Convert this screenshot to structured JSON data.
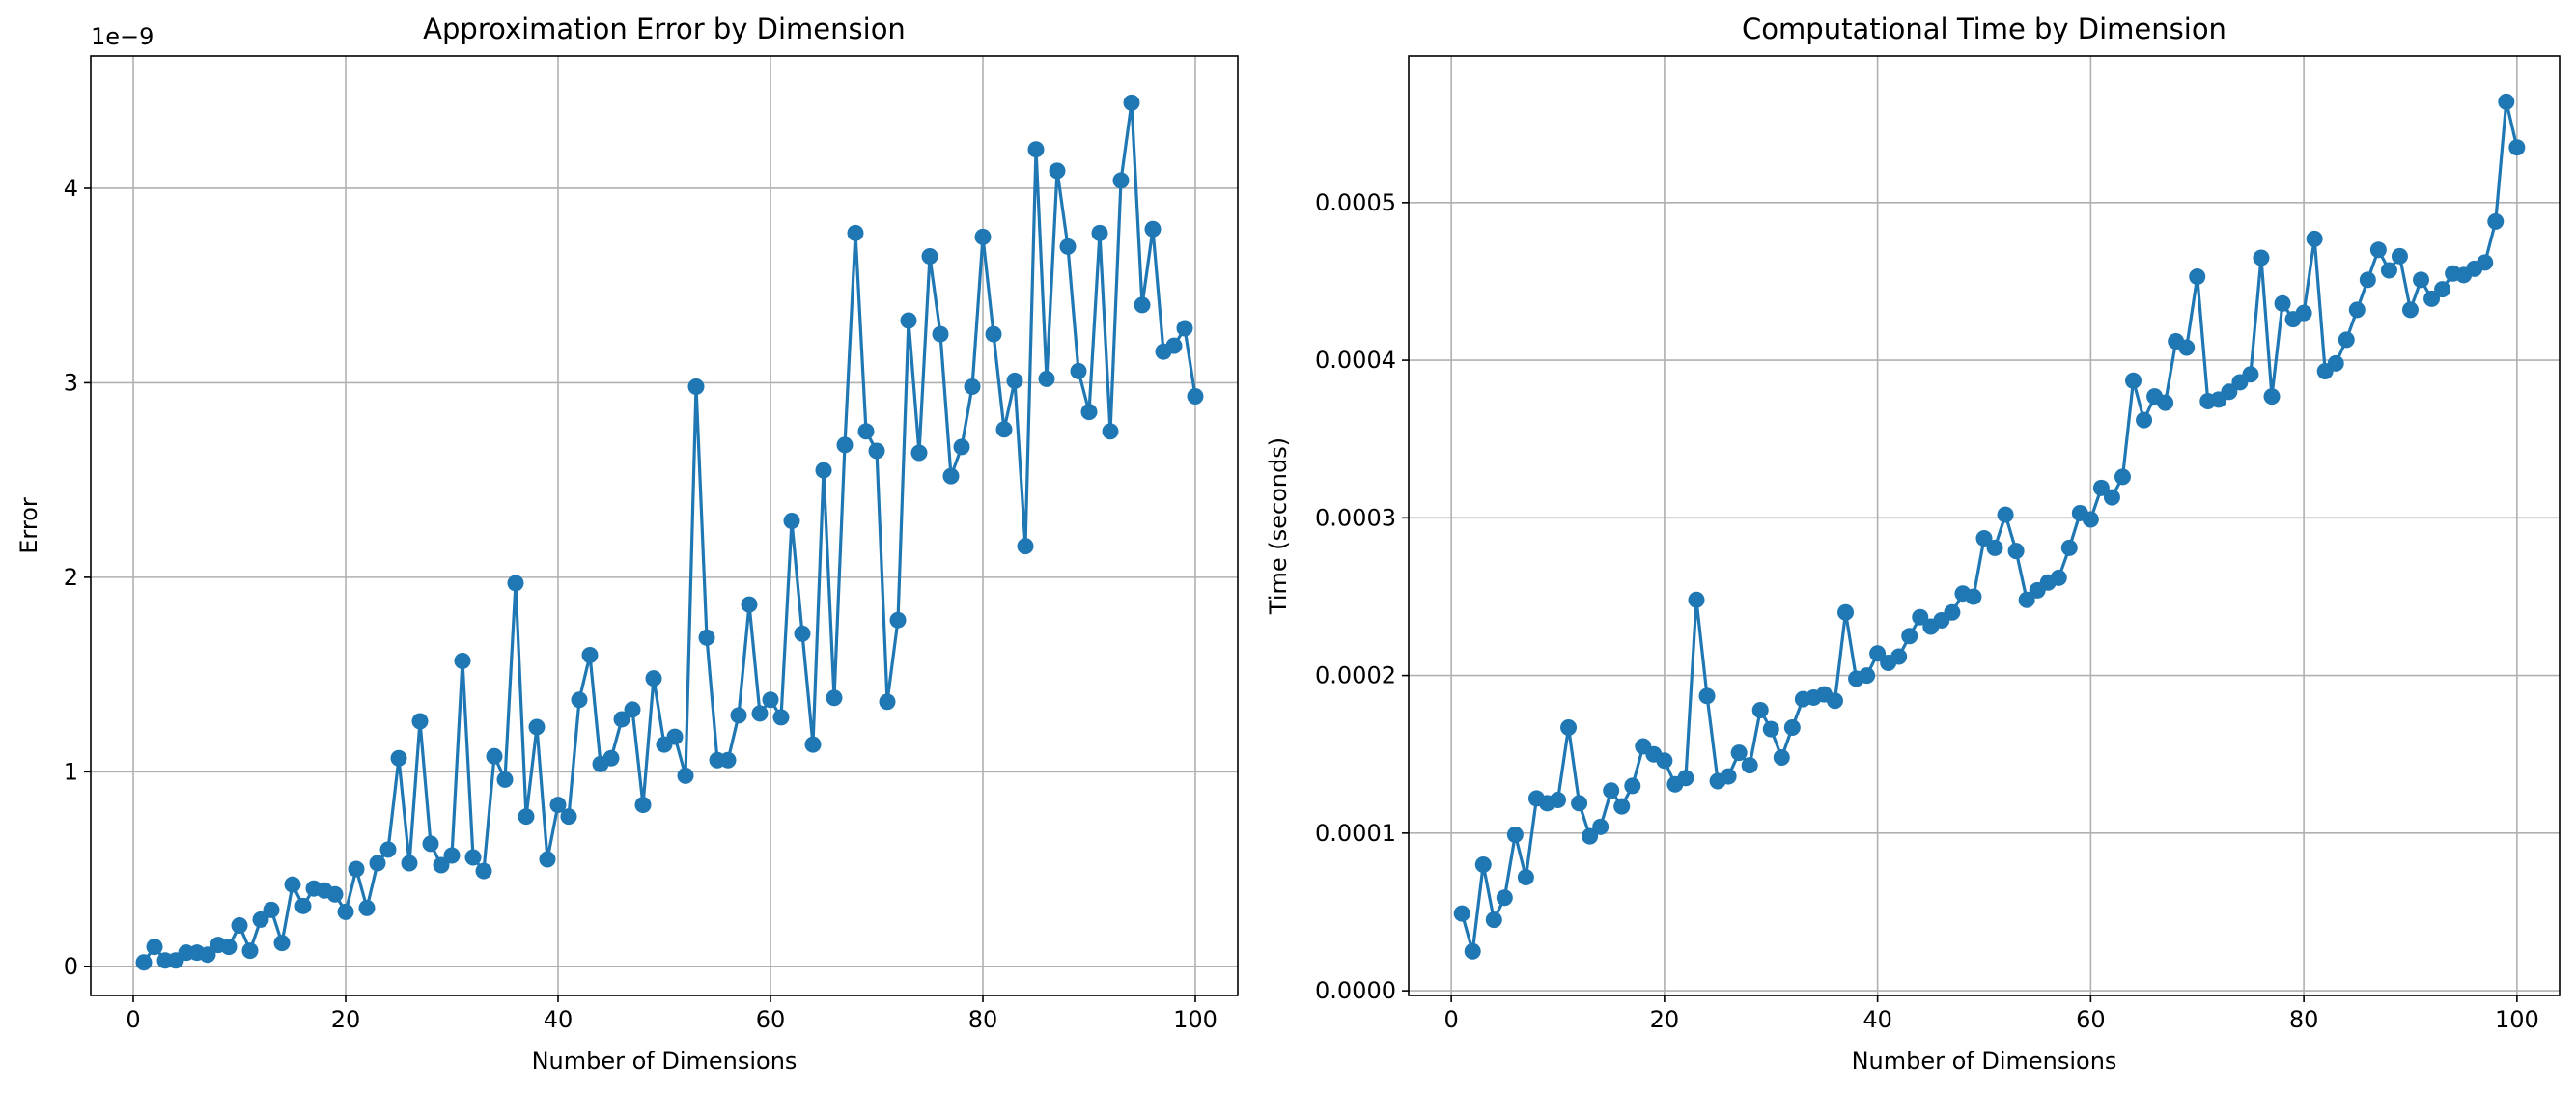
{
  "style": {
    "series_color": "#1f77b4",
    "grid_color": "#b0b0b0",
    "background": "#ffffff"
  },
  "chart_data": [
    {
      "type": "line",
      "title": "Approximation Error by Dimension",
      "xlabel": "Number of Dimensions",
      "ylabel": "Error",
      "y_offset_label": "1e−9",
      "grid": true,
      "markers": true,
      "xlim": [
        -4,
        104
      ],
      "ylim": [
        -0.15,
        4.68
      ],
      "x_ticks": [
        0,
        20,
        40,
        60,
        80,
        100
      ],
      "x_tick_labels": [
        "0",
        "20",
        "40",
        "60",
        "80",
        "100"
      ],
      "y_ticks": [
        0,
        1,
        2,
        3,
        4
      ],
      "y_tick_labels": [
        "0",
        "1",
        "2",
        "3",
        "4"
      ],
      "series": [
        {
          "x": [
            1,
            2,
            3,
            4,
            5,
            6,
            7,
            8,
            9,
            10,
            11,
            12,
            13,
            14,
            15,
            16,
            17,
            18,
            19,
            20,
            21,
            22,
            23,
            24,
            25,
            26,
            27,
            28,
            29,
            30,
            31,
            32,
            33,
            34,
            35,
            36,
            37,
            38,
            39,
            40,
            41,
            42,
            43,
            44,
            45,
            46,
            47,
            48,
            49,
            50,
            51,
            52,
            53,
            54,
            55,
            56,
            57,
            58,
            59,
            60,
            61,
            62,
            63,
            64,
            65,
            66,
            67,
            68,
            69,
            70,
            71,
            72,
            73,
            74,
            75,
            76,
            77,
            78,
            79,
            80,
            81,
            82,
            83,
            84,
            85,
            86,
            87,
            88,
            89,
            90,
            91,
            92,
            93,
            94,
            95,
            96,
            97,
            98,
            99,
            100
          ],
          "y": [
            0.02,
            0.1,
            0.03,
            0.03,
            0.07,
            0.07,
            0.06,
            0.11,
            0.1,
            0.21,
            0.08,
            0.24,
            0.29,
            0.12,
            0.42,
            0.31,
            0.4,
            0.39,
            0.37,
            0.28,
            0.5,
            0.3,
            0.53,
            0.6,
            1.07,
            0.53,
            1.26,
            0.63,
            0.52,
            0.57,
            1.57,
            0.56,
            0.49,
            1.08,
            0.96,
            1.97,
            0.77,
            1.23,
            0.55,
            0.83,
            0.77,
            1.37,
            1.6,
            1.04,
            1.07,
            1.27,
            1.32,
            0.83,
            1.48,
            1.14,
            1.18,
            0.98,
            2.98,
            1.69,
            1.06,
            1.06,
            1.29,
            1.86,
            1.3,
            1.37,
            1.28,
            2.29,
            1.71,
            1.14,
            2.55,
            1.38,
            2.68,
            3.77,
            2.75,
            2.65,
            1.36,
            1.78,
            3.32,
            2.64,
            3.65,
            3.25,
            2.52,
            2.67,
            2.98,
            3.75,
            3.25,
            2.76,
            3.01,
            2.16,
            4.2,
            3.02,
            4.09,
            3.7,
            3.06,
            2.85,
            3.77,
            2.75,
            4.04,
            4.44,
            3.4,
            3.79,
            3.16,
            3.19,
            3.28,
            2.93
          ]
        }
      ]
    },
    {
      "type": "line",
      "title": "Computational Time by Dimension",
      "xlabel": "Number of Dimensions",
      "ylabel": "Time (seconds)",
      "grid": true,
      "markers": true,
      "xlim": [
        -4,
        104
      ],
      "ylim": [
        -3e-06,
        0.000593
      ],
      "x_ticks": [
        0,
        20,
        40,
        60,
        80,
        100
      ],
      "x_tick_labels": [
        "0",
        "20",
        "40",
        "60",
        "80",
        "100"
      ],
      "y_ticks": [
        0,
        0.0001,
        0.0002,
        0.0003,
        0.0004,
        0.0005
      ],
      "y_tick_labels": [
        "0.0000",
        "0.0001",
        "0.0002",
        "0.0003",
        "0.0004",
        "0.0005"
      ],
      "series": [
        {
          "x": [
            1,
            2,
            3,
            4,
            5,
            6,
            7,
            8,
            9,
            10,
            11,
            12,
            13,
            14,
            15,
            16,
            17,
            18,
            19,
            20,
            21,
            22,
            23,
            24,
            25,
            26,
            27,
            28,
            29,
            30,
            31,
            32,
            33,
            34,
            35,
            36,
            37,
            38,
            39,
            40,
            41,
            42,
            43,
            44,
            45,
            46,
            47,
            48,
            49,
            50,
            51,
            52,
            53,
            54,
            55,
            56,
            57,
            58,
            59,
            60,
            61,
            62,
            63,
            64,
            65,
            66,
            67,
            68,
            69,
            70,
            71,
            72,
            73,
            74,
            75,
            76,
            77,
            78,
            79,
            80,
            81,
            82,
            83,
            84,
            85,
            86,
            87,
            88,
            89,
            90,
            91,
            92,
            93,
            94,
            95,
            96,
            97,
            98,
            99,
            100
          ],
          "y": [
            4.9e-05,
            2.5e-05,
            8e-05,
            4.5e-05,
            5.9e-05,
            9.9e-05,
            7.2e-05,
            0.000122,
            0.000119,
            0.000121,
            0.000167,
            0.000119,
            9.8e-05,
            0.000104,
            0.000127,
            0.000117,
            0.00013,
            0.000155,
            0.00015,
            0.000146,
            0.000131,
            0.000135,
            0.000248,
            0.000187,
            0.000133,
            0.000136,
            0.000151,
            0.000143,
            0.000178,
            0.000166,
            0.000148,
            0.000167,
            0.000185,
            0.000186,
            0.000188,
            0.000184,
            0.00024,
            0.000198,
            0.0002,
            0.000214,
            0.000208,
            0.000212,
            0.000225,
            0.000237,
            0.000231,
            0.000235,
            0.00024,
            0.000252,
            0.00025,
            0.000287,
            0.000281,
            0.000302,
            0.000279,
            0.000248,
            0.000254,
            0.000259,
            0.000262,
            0.000281,
            0.000303,
            0.000299,
            0.000319,
            0.000313,
            0.000326,
            0.000387,
            0.000362,
            0.000377,
            0.000373,
            0.000412,
            0.000408,
            0.000453,
            0.000374,
            0.000375,
            0.00038,
            0.000386,
            0.000391,
            0.000465,
            0.000377,
            0.000436,
            0.000426,
            0.00043,
            0.000477,
            0.000393,
            0.000398,
            0.000413,
            0.000432,
            0.000451,
            0.00047,
            0.000457,
            0.000466,
            0.000432,
            0.000451,
            0.000439,
            0.000445,
            0.000455,
            0.000454,
            0.000458,
            0.000462,
            0.000488,
            0.000564,
            0.000535
          ]
        }
      ]
    }
  ]
}
